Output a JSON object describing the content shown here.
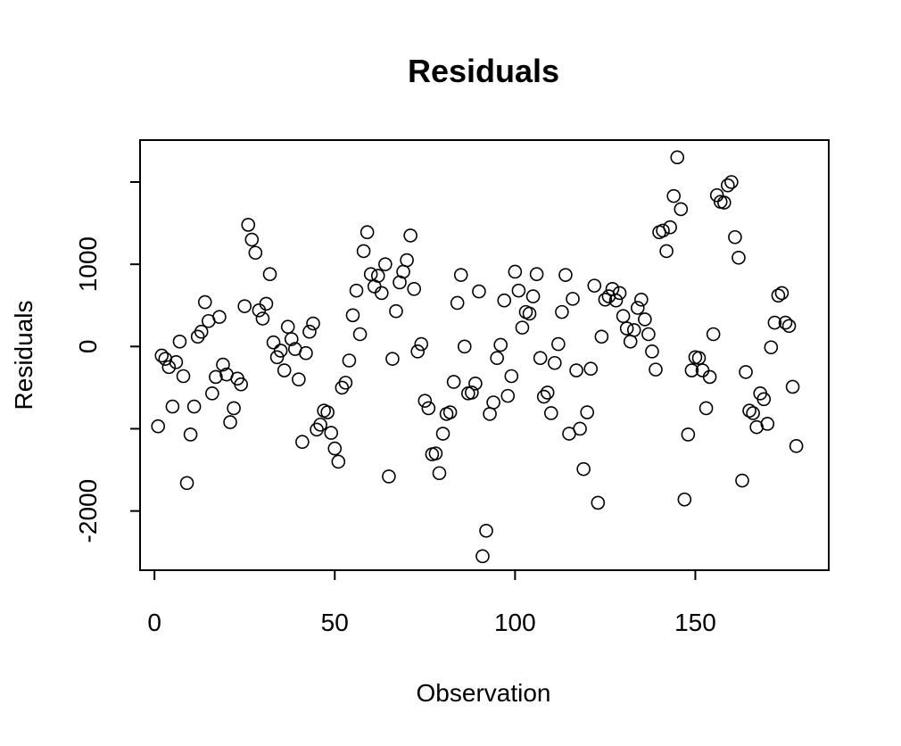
{
  "chart_data": {
    "type": "scatter",
    "title": "Residuals",
    "xlabel": "Observation",
    "ylabel": "Residuals",
    "xlim": [
      -4,
      187
    ],
    "ylim": [
      -2720,
      2510
    ],
    "xticks": [
      0,
      50,
      100,
      150
    ],
    "yticks": [
      -2000,
      0,
      1000
    ],
    "ytick_extra": [
      -1000,
      2000
    ],
    "grid": false,
    "x": [
      1,
      2,
      3,
      4,
      5,
      6,
      7,
      8,
      9,
      10,
      11,
      12,
      13,
      14,
      15,
      16,
      17,
      18,
      19,
      20,
      21,
      22,
      23,
      24,
      25,
      26,
      27,
      28,
      29,
      30,
      31,
      32,
      33,
      34,
      35,
      36,
      37,
      38,
      39,
      40,
      41,
      42,
      43,
      44,
      45,
      46,
      47,
      48,
      49,
      50,
      51,
      52,
      53,
      54,
      55,
      56,
      57,
      58,
      59,
      60,
      61,
      62,
      63,
      64,
      65,
      66,
      67,
      68,
      69,
      70,
      71,
      72,
      73,
      74,
      75,
      76,
      77,
      78,
      79,
      80,
      81,
      82,
      83,
      84,
      85,
      86,
      87,
      88,
      89,
      90,
      91,
      92,
      93,
      94,
      95,
      96,
      97,
      98,
      99,
      100,
      101,
      102,
      103,
      104,
      105,
      106,
      107,
      108,
      109,
      110,
      111,
      112,
      113,
      114,
      115,
      116,
      117,
      118,
      119,
      120,
      121,
      122,
      123,
      124,
      125,
      126,
      127,
      128,
      129,
      130,
      131,
      132,
      133,
      134,
      135,
      136,
      137,
      138,
      139,
      140,
      141,
      142,
      143,
      144,
      145,
      146,
      147,
      148,
      149,
      150,
      151,
      152,
      153,
      154,
      155,
      156,
      157,
      158,
      159,
      160,
      161,
      162,
      163,
      164,
      165,
      166,
      167,
      168,
      169,
      170,
      171,
      172,
      173,
      174,
      175,
      176,
      177,
      178
    ],
    "y": [
      -970,
      -110,
      -150,
      -250,
      -730,
      -190,
      60,
      -360,
      -1660,
      -1070,
      -730,
      120,
      180,
      540,
      310,
      -570,
      -370,
      360,
      -220,
      -340,
      -920,
      -750,
      -390,
      -460,
      490,
      1480,
      1300,
      1140,
      440,
      340,
      520,
      880,
      50,
      -130,
      -50,
      -290,
      240,
      90,
      -30,
      -400,
      -1160,
      -80,
      180,
      280,
      -1010,
      -950,
      -780,
      -800,
      -1050,
      -1240,
      -1400,
      -500,
      -440,
      -170,
      380,
      680,
      150,
      1160,
      1390,
      880,
      730,
      860,
      650,
      1000,
      -1580,
      -150,
      430,
      780,
      910,
      1050,
      1350,
      700,
      -60,
      30,
      -660,
      -750,
      -1310,
      -1300,
      -1540,
      -1060,
      -820,
      -800,
      -430,
      530,
      870,
      0,
      -570,
      -560,
      -450,
      670,
      -2550,
      -2240,
      -820,
      -680,
      -140,
      20,
      560,
      -600,
      -360,
      910,
      680,
      230,
      420,
      400,
      610,
      880,
      -140,
      -610,
      -560,
      -810,
      -200,
      30,
      420,
      870,
      -1060,
      580,
      -290,
      -1000,
      -1490,
      -800,
      -270,
      740,
      -1900,
      120,
      570,
      610,
      700,
      560,
      650,
      370,
      220,
      60,
      200,
      470,
      570,
      330,
      150,
      -60,
      -280,
      1390,
      1410,
      1160,
      1450,
      1830,
      2300,
      1670,
      -1860,
      -1070,
      -290,
      -130,
      -140,
      -290,
      -750,
      -370,
      150,
      1840,
      1760,
      1750,
      1960,
      2000,
      1330,
      1080,
      -1630,
      -310,
      -780,
      -810,
      -980,
      -570,
      -640,
      -940,
      -10,
      290,
      620,
      650,
      290,
      250,
      -490,
      -1210
    ]
  }
}
